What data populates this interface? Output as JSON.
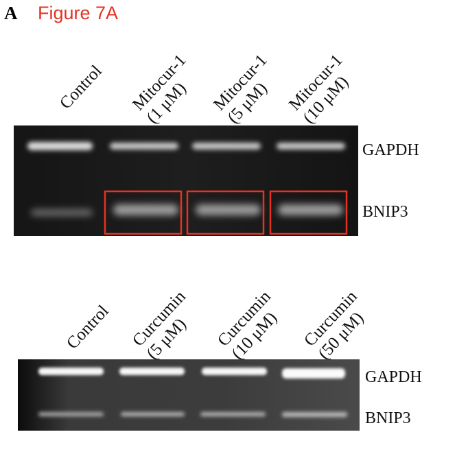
{
  "panel_letter": "A",
  "figure_title": "Figure 7A",
  "colors": {
    "title": "#e53222",
    "highlight_box": "#e53222",
    "gel_background": "#1a1a1a"
  },
  "gel1": {
    "lanes": [
      {
        "line1": "Control",
        "line2": ""
      },
      {
        "line1": "Mitocur-1",
        "line2": "(1 μM)"
      },
      {
        "line1": "Mitocur-1",
        "line2": "(5 μM)"
      },
      {
        "line1": "Mitocur-1",
        "line2": "(10 μM)"
      }
    ],
    "bands": {
      "top": "GAPDH",
      "bottom": "BNIP3"
    },
    "highlighted_lanes": [
      1,
      2,
      3
    ]
  },
  "gel2": {
    "lanes": [
      {
        "line1": "Control",
        "line2": ""
      },
      {
        "line1": "Curcumin",
        "line2": "(5 μM)"
      },
      {
        "line1": "Curcumin",
        "line2": "(10 μM)"
      },
      {
        "line1": "Curcumin",
        "line2": "(50 μM)"
      }
    ],
    "bands": {
      "top": "GAPDH",
      "bottom": "BNIP3"
    }
  }
}
